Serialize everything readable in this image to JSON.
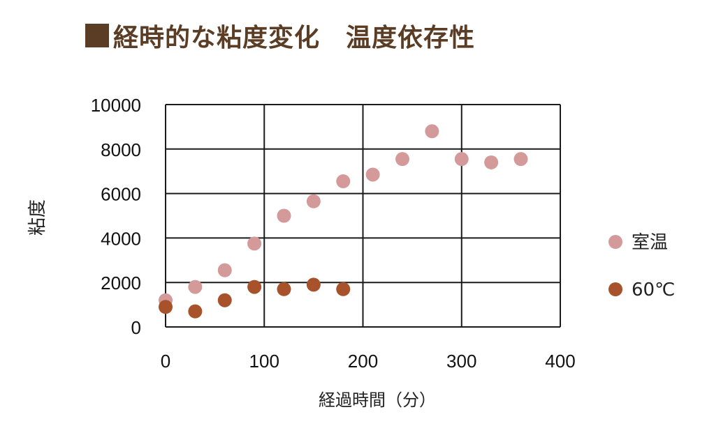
{
  "title": "経時的な粘度変化　温度依存性",
  "title_color": "#5a3d24",
  "chart_data": {
    "type": "scatter",
    "xlabel": "経過時間（分）",
    "ylabel": "粘度",
    "xlim": [
      0,
      400
    ],
    "ylim": [
      0,
      10000
    ],
    "x_ticks": [
      "0",
      "100",
      "200",
      "300",
      "400"
    ],
    "y_ticks": [
      "0",
      "2000",
      "4000",
      "6000",
      "8000",
      "10000"
    ],
    "grid": true,
    "legend_position": "right",
    "series": [
      {
        "name": "室温",
        "color": "#d49a9a",
        "points": [
          {
            "x": 0,
            "y": 1200
          },
          {
            "x": 30,
            "y": 1800
          },
          {
            "x": 60,
            "y": 2550
          },
          {
            "x": 90,
            "y": 3750
          },
          {
            "x": 120,
            "y": 5000
          },
          {
            "x": 150,
            "y": 5650
          },
          {
            "x": 180,
            "y": 6550
          },
          {
            "x": 210,
            "y": 6850
          },
          {
            "x": 240,
            "y": 7550
          },
          {
            "x": 270,
            "y": 8800
          },
          {
            "x": 300,
            "y": 7550
          },
          {
            "x": 330,
            "y": 7400
          },
          {
            "x": 360,
            "y": 7550
          }
        ]
      },
      {
        "name": "60℃",
        "color": "#a8522b",
        "points": [
          {
            "x": 0,
            "y": 900
          },
          {
            "x": 30,
            "y": 700
          },
          {
            "x": 60,
            "y": 1200
          },
          {
            "x": 90,
            "y": 1800
          },
          {
            "x": 120,
            "y": 1700
          },
          {
            "x": 150,
            "y": 1900
          },
          {
            "x": 180,
            "y": 1700
          }
        ]
      }
    ]
  }
}
